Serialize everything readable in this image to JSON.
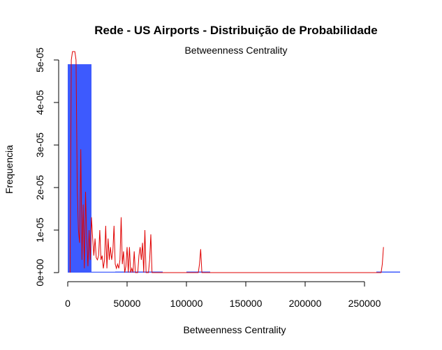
{
  "chart_data": {
    "type": "bar",
    "title": "Rede - US Airports - Distribuição de Probabilidade",
    "subtitle": "Betweenness Centrality",
    "xlabel": "Betweenness Centrality",
    "ylabel": "Frequencia",
    "xlim": [
      0,
      280000
    ],
    "ylim": [
      0,
      5e-05
    ],
    "x_ticks": [
      0,
      50000,
      100000,
      150000,
      200000,
      250000
    ],
    "x_tick_labels": [
      "0",
      "50000",
      "100000",
      "150000",
      "200000",
      "250000"
    ],
    "y_ticks": [
      0,
      1e-05,
      2e-05,
      3e-05,
      4e-05,
      5e-05
    ],
    "y_tick_labels": [
      "0e+00",
      "1e-05",
      "2e-05",
      "3e-05",
      "4e-05",
      "5e-05"
    ],
    "histogram": {
      "name": "histogram",
      "color": "#3d5afe",
      "bins": [
        {
          "x0": 0,
          "x1": 20000,
          "density": 4.9e-05
        },
        {
          "x0": 20000,
          "x1": 40000,
          "density": 2e-07
        },
        {
          "x0": 40000,
          "x1": 60000,
          "density": 1e-07
        },
        {
          "x0": 60000,
          "x1": 80000,
          "density": 3e-08
        },
        {
          "x0": 80000,
          "x1": 100000,
          "density": 0
        },
        {
          "x0": 100000,
          "x1": 120000,
          "density": 1e-08
        },
        {
          "x0": 120000,
          "x1": 140000,
          "density": 0
        },
        {
          "x0": 140000,
          "x1": 160000,
          "density": 0
        },
        {
          "x0": 160000,
          "x1": 180000,
          "density": 0
        },
        {
          "x0": 180000,
          "x1": 200000,
          "density": 0
        },
        {
          "x0": 200000,
          "x1": 220000,
          "density": 0
        },
        {
          "x0": 220000,
          "x1": 240000,
          "density": 0
        },
        {
          "x0": 240000,
          "x1": 260000,
          "density": 0
        },
        {
          "x0": 260000,
          "x1": 280000,
          "density": 1e-08
        }
      ]
    },
    "density_line": {
      "name": "density",
      "color": "#e00000",
      "points": [
        [
          2000,
          0
        ],
        [
          3000,
          5e-05
        ],
        [
          4000,
          5.5e-05
        ],
        [
          5000,
          5.3e-05
        ],
        [
          6000,
          5.5e-05
        ],
        [
          7000,
          5e-05
        ],
        [
          8000,
          2e-05
        ],
        [
          9000,
          1e-05
        ],
        [
          10000,
          7e-06
        ],
        [
          11000,
          2.9e-05
        ],
        [
          12000,
          3e-06
        ],
        [
          13000,
          1.6e-05
        ],
        [
          14000,
          1e-06
        ],
        [
          15000,
          1.9e-05
        ],
        [
          16000,
          8e-06
        ],
        [
          17000,
          1.5e-06
        ],
        [
          18000,
          1e-05
        ],
        [
          19000,
          3e-06
        ],
        [
          20000,
          1.3e-05
        ],
        [
          21000,
          8e-06
        ],
        [
          22000,
          4e-06
        ],
        [
          23000,
          8e-06
        ],
        [
          24000,
          3.5e-06
        ],
        [
          25000,
          3e-06
        ],
        [
          26000,
          4e-06
        ],
        [
          27000,
          1e-05
        ],
        [
          28000,
          3e-06
        ],
        [
          29000,
          4e-06
        ],
        [
          30000,
          1e-06
        ],
        [
          31000,
          3e-06
        ],
        [
          32000,
          1.1e-05
        ],
        [
          33000,
          1e-06
        ],
        [
          34000,
          8e-06
        ],
        [
          35000,
          3e-06
        ],
        [
          36000,
          6e-06
        ],
        [
          37000,
          3e-06
        ],
        [
          38000,
          5e-06
        ],
        [
          39000,
          1.1e-05
        ],
        [
          40000,
          2e-06
        ],
        [
          41000,
          1e-06
        ],
        [
          42000,
          2e-06
        ],
        [
          43000,
          1e-06
        ],
        [
          44000,
          3e-06
        ],
        [
          45000,
          1.3e-05
        ],
        [
          46000,
          2e-06
        ],
        [
          47000,
          5e-06
        ],
        [
          48000,
          0
        ],
        [
          49000,
          1.5e-06
        ],
        [
          50000,
          6e-06
        ],
        [
          51000,
          0
        ],
        [
          52000,
          6e-06
        ],
        [
          53000,
          0
        ],
        [
          54000,
          1e-06
        ],
        [
          55000,
          0
        ],
        [
          56000,
          5e-06
        ],
        [
          57000,
          0
        ],
        [
          58000,
          0
        ],
        [
          59000,
          0
        ],
        [
          60000,
          4e-06
        ],
        [
          61000,
          6e-06
        ],
        [
          62000,
          3e-06
        ],
        [
          63000,
          7e-06
        ],
        [
          64000,
          0
        ],
        [
          65000,
          1e-05
        ],
        [
          66000,
          0
        ],
        [
          67000,
          0
        ],
        [
          68000,
          0
        ],
        [
          69000,
          3e-06
        ],
        [
          70000,
          9e-06
        ],
        [
          71000,
          0
        ],
        [
          72000,
          0
        ],
        [
          110000,
          0
        ],
        [
          111000,
          2e-06
        ],
        [
          112000,
          5.5e-06
        ],
        [
          113000,
          0
        ],
        [
          114000,
          0
        ],
        [
          264000,
          0
        ],
        [
          265000,
          2e-06
        ],
        [
          266000,
          6e-06
        ]
      ]
    }
  }
}
